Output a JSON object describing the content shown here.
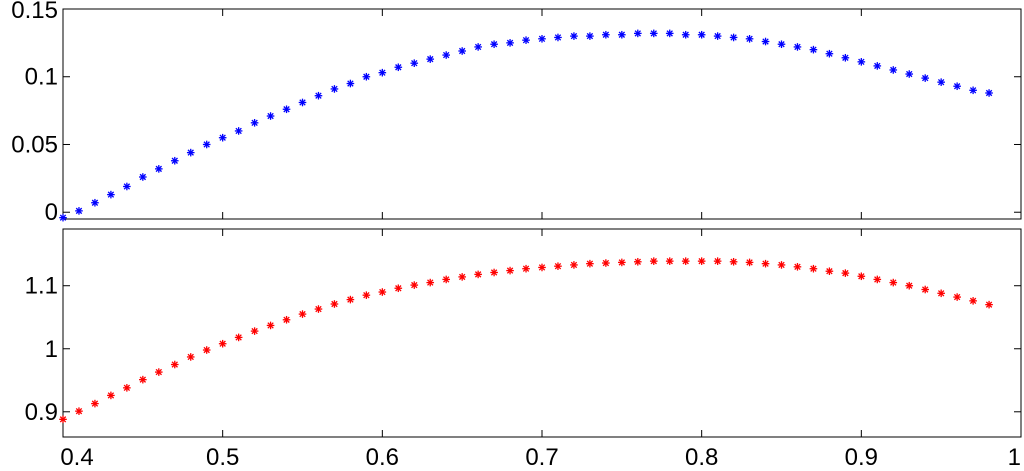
{
  "chart_data": [
    {
      "type": "scatter",
      "marker": "asterisk",
      "grid": false,
      "xlim": [
        0.4,
        1.0
      ],
      "ylim": [
        -0.005,
        0.15
      ],
      "xticks": [
        0.4,
        0.5,
        0.6,
        0.7,
        0.8,
        0.9,
        1.0
      ],
      "xtick_labels": [],
      "yticks": [
        0,
        0.05,
        0.1,
        0.15
      ],
      "ytick_labels": [
        "0",
        "0.05",
        "0.1",
        "0.15"
      ],
      "color": "#0000ff",
      "x": [
        0.4,
        0.41,
        0.42,
        0.43,
        0.44,
        0.45,
        0.46,
        0.47,
        0.48,
        0.49,
        0.5,
        0.51,
        0.52,
        0.53,
        0.54,
        0.55,
        0.56,
        0.57,
        0.58,
        0.59,
        0.6,
        0.61,
        0.62,
        0.63,
        0.64,
        0.65,
        0.66,
        0.67,
        0.68,
        0.69,
        0.7,
        0.71,
        0.72,
        0.73,
        0.74,
        0.75,
        0.76,
        0.77,
        0.78,
        0.79,
        0.8,
        0.81,
        0.82,
        0.83,
        0.84,
        0.85,
        0.86,
        0.87,
        0.88,
        0.89,
        0.9,
        0.91,
        0.92,
        0.93,
        0.94,
        0.95,
        0.96,
        0.97,
        0.98
      ],
      "y": [
        -0.004,
        0.001,
        0.007,
        0.013,
        0.019,
        0.026,
        0.032,
        0.038,
        0.044,
        0.05,
        0.055,
        0.06,
        0.066,
        0.071,
        0.076,
        0.081,
        0.086,
        0.091,
        0.095,
        0.1,
        0.103,
        0.107,
        0.11,
        0.113,
        0.116,
        0.119,
        0.122,
        0.124,
        0.125,
        0.127,
        0.128,
        0.129,
        0.13,
        0.13,
        0.131,
        0.131,
        0.132,
        0.132,
        0.132,
        0.131,
        0.131,
        0.13,
        0.129,
        0.128,
        0.126,
        0.124,
        0.122,
        0.12,
        0.117,
        0.114,
        0.111,
        0.108,
        0.105,
        0.102,
        0.099,
        0.096,
        0.093,
        0.09,
        0.088
      ]
    },
    {
      "type": "scatter",
      "marker": "asterisk",
      "grid": false,
      "xlim": [
        0.4,
        1.0
      ],
      "ylim": [
        0.86,
        1.19
      ],
      "xticks": [
        0.4,
        0.5,
        0.6,
        0.7,
        0.8,
        0.9,
        1.0
      ],
      "xtick_labels": [
        "0.4",
        "0.5",
        "0.6",
        "0.7",
        "0.8",
        "0.9",
        "1"
      ],
      "yticks": [
        0.9,
        1.0,
        1.1
      ],
      "ytick_labels": [
        "0.9",
        "1",
        "1.1"
      ],
      "color": "#ff0000",
      "x": [
        0.4,
        0.41,
        0.42,
        0.43,
        0.44,
        0.45,
        0.46,
        0.47,
        0.48,
        0.49,
        0.5,
        0.51,
        0.52,
        0.53,
        0.54,
        0.55,
        0.56,
        0.57,
        0.58,
        0.59,
        0.6,
        0.61,
        0.62,
        0.63,
        0.64,
        0.65,
        0.66,
        0.67,
        0.68,
        0.69,
        0.7,
        0.71,
        0.72,
        0.73,
        0.74,
        0.75,
        0.76,
        0.77,
        0.78,
        0.79,
        0.8,
        0.81,
        0.82,
        0.83,
        0.84,
        0.85,
        0.86,
        0.87,
        0.88,
        0.89,
        0.9,
        0.91,
        0.92,
        0.93,
        0.94,
        0.95,
        0.96,
        0.97,
        0.98
      ],
      "y": [
        0.888,
        0.901,
        0.913,
        0.926,
        0.938,
        0.951,
        0.963,
        0.975,
        0.987,
        0.998,
        1.008,
        1.018,
        1.028,
        1.037,
        1.046,
        1.055,
        1.063,
        1.071,
        1.078,
        1.085,
        1.09,
        1.096,
        1.101,
        1.105,
        1.11,
        1.114,
        1.118,
        1.121,
        1.124,
        1.127,
        1.129,
        1.131,
        1.133,
        1.135,
        1.136,
        1.137,
        1.138,
        1.139,
        1.139,
        1.139,
        1.139,
        1.139,
        1.138,
        1.137,
        1.135,
        1.133,
        1.13,
        1.127,
        1.123,
        1.12,
        1.115,
        1.11,
        1.105,
        1.1,
        1.094,
        1.088,
        1.082,
        1.076,
        1.07
      ]
    }
  ]
}
